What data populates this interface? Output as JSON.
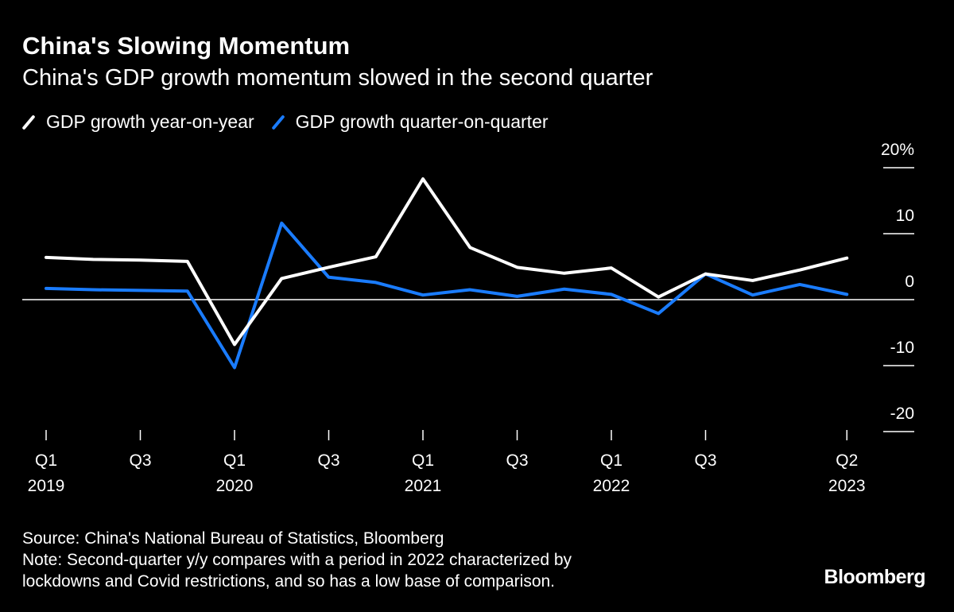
{
  "header": {
    "title": "China's Slowing Momentum",
    "subtitle": "China's GDP growth momentum slowed in the second quarter"
  },
  "footer": {
    "source": "Source: China's National Bureau of Statistics, Bloomberg",
    "note_line1": "Note: Second-quarter y/y compares with a period in 2022 characterized by",
    "note_line2": "lockdowns and Covid restrictions, and so has a low base of comparison.",
    "brand": "Bloomberg"
  },
  "chart_data": {
    "type": "line",
    "title": "China's Slowing Momentum",
    "subtitle": "China's GDP growth momentum slowed in the second quarter",
    "x": [
      "2019 Q1",
      "2019 Q2",
      "2019 Q3",
      "2019 Q4",
      "2020 Q1",
      "2020 Q2",
      "2020 Q3",
      "2020 Q4",
      "2021 Q1",
      "2021 Q2",
      "2021 Q3",
      "2021 Q4",
      "2022 Q1",
      "2022 Q2",
      "2022 Q3",
      "2022 Q4",
      "2023 Q1",
      "2023 Q2"
    ],
    "x_ticks": [
      {
        "index": 0,
        "line1": "Q1",
        "line2": "2019"
      },
      {
        "index": 2,
        "line1": "Q3",
        "line2": ""
      },
      {
        "index": 4,
        "line1": "Q1",
        "line2": "2020"
      },
      {
        "index": 6,
        "line1": "Q3",
        "line2": ""
      },
      {
        "index": 8,
        "line1": "Q1",
        "line2": "2021"
      },
      {
        "index": 10,
        "line1": "Q3",
        "line2": ""
      },
      {
        "index": 12,
        "line1": "Q1",
        "line2": "2022"
      },
      {
        "index": 14,
        "line1": "Q3",
        "line2": ""
      },
      {
        "index": 17,
        "line1": "Q2",
        "line2": "2023"
      }
    ],
    "y_ticks": [
      {
        "value": 20,
        "label": "20%"
      },
      {
        "value": 10,
        "label": "10"
      },
      {
        "value": 0,
        "label": "0"
      },
      {
        "value": -10,
        "label": "-10"
      },
      {
        "value": -20,
        "label": "-20"
      }
    ],
    "ylim": [
      -20,
      20
    ],
    "y_axis_position": "right",
    "legend_position": "top-left",
    "series": [
      {
        "name": "GDP growth year-on-year",
        "color": "#ffffff",
        "values": [
          6.4,
          6.1,
          6.0,
          5.8,
          -6.8,
          3.2,
          4.9,
          6.5,
          18.3,
          7.9,
          4.9,
          4.0,
          4.8,
          0.4,
          3.9,
          2.9,
          4.5,
          6.3
        ]
      },
      {
        "name": "GDP growth quarter-on-quarter",
        "color": "#1a7cff",
        "values": [
          1.7,
          1.5,
          1.4,
          1.3,
          -10.3,
          11.6,
          3.4,
          2.6,
          0.7,
          1.5,
          0.5,
          1.6,
          0.8,
          -2.1,
          3.9,
          0.7,
          2.3,
          0.8
        ]
      }
    ]
  }
}
